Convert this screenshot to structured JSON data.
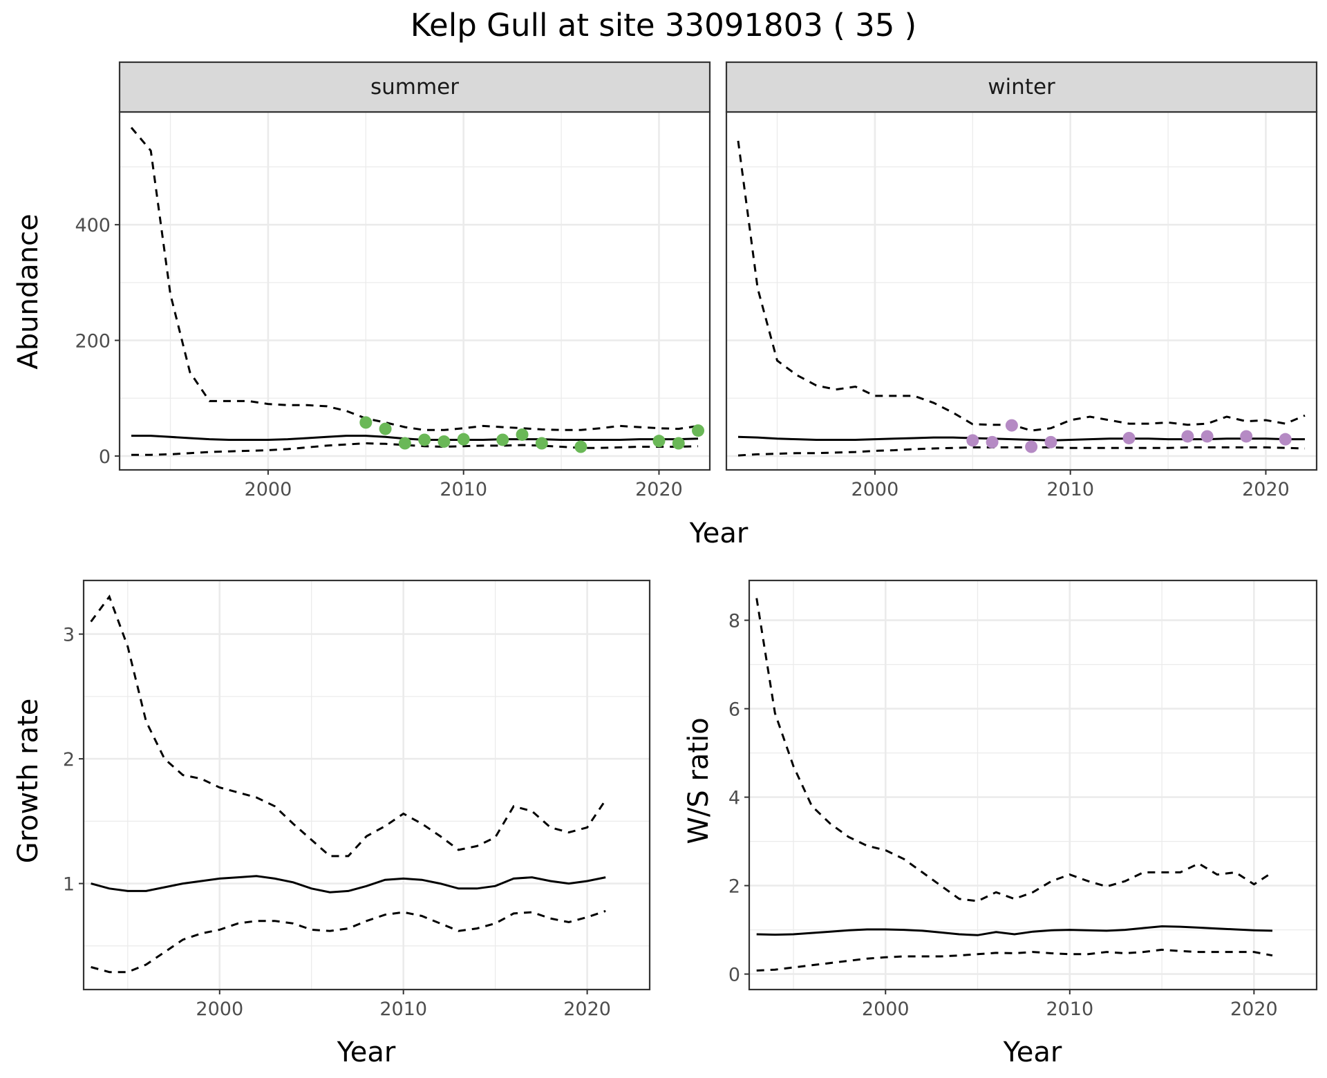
{
  "title": "Kelp Gull at site 33091803 ( 35 )",
  "colors": {
    "summer_points": "#6ab857",
    "winter_points": "#b58ac4",
    "lines": "#000000",
    "grid": "#ebebeb",
    "strip_fill": "#d9d9d9"
  },
  "chart_data": [
    {
      "id": "abundance",
      "type": "line",
      "facets": [
        "summer",
        "winter"
      ],
      "xlabel": "Year",
      "ylabel": "Abundance",
      "xlim": [
        1992.4,
        2022.6
      ],
      "ylim": [
        -24,
        595
      ],
      "xticks": [
        2000,
        2010,
        2020
      ],
      "yticks": [
        0,
        200,
        400
      ],
      "x": [
        1993,
        1994,
        1995,
        1996,
        1997,
        1998,
        1999,
        2000,
        2001,
        2002,
        2003,
        2004,
        2005,
        2006,
        2007,
        2008,
        2009,
        2010,
        2011,
        2012,
        2013,
        2014,
        2015,
        2016,
        2017,
        2018,
        2019,
        2020,
        2021,
        2022
      ],
      "panels": [
        {
          "facet": "summer",
          "mean": [
            35,
            35,
            33,
            31,
            29,
            28,
            28,
            28,
            29,
            31,
            33,
            35,
            35,
            33,
            30,
            28,
            28,
            28,
            28,
            29,
            29,
            29,
            28,
            28,
            28,
            28,
            29,
            29,
            29,
            30
          ],
          "upper": [
            568,
            528,
            280,
            145,
            95,
            95,
            95,
            90,
            88,
            88,
            86,
            78,
            65,
            58,
            50,
            45,
            45,
            48,
            52,
            50,
            48,
            46,
            45,
            45,
            48,
            52,
            50,
            48,
            47,
            52
          ],
          "lower": [
            2,
            2,
            3,
            5,
            7,
            8,
            9,
            10,
            12,
            15,
            18,
            20,
            22,
            21,
            19,
            17,
            16,
            17,
            18,
            18,
            19,
            18,
            16,
            14,
            14,
            15,
            16,
            16,
            16,
            17
          ],
          "points_x": [
            2005,
            2006,
            2007,
            2008,
            2009,
            2010,
            2012,
            2013,
            2014,
            2016,
            2020,
            2021,
            2022
          ],
          "points_y": [
            58,
            47,
            22,
            28,
            25,
            29,
            28,
            37,
            22,
            16,
            26,
            22,
            44
          ]
        },
        {
          "facet": "winter",
          "mean": [
            33,
            32,
            30,
            29,
            28,
            28,
            28,
            29,
            30,
            31,
            32,
            32,
            31,
            30,
            29,
            28,
            27,
            28,
            29,
            30,
            30,
            30,
            29,
            29,
            29,
            30,
            30,
            30,
            29,
            29
          ],
          "upper": [
            545,
            290,
            165,
            140,
            122,
            115,
            120,
            104,
            104,
            104,
            92,
            75,
            55,
            54,
            54,
            44,
            48,
            62,
            68,
            62,
            56,
            56,
            58,
            54,
            56,
            68,
            60,
            62,
            56,
            70
          ],
          "lower": [
            1,
            3,
            4,
            5,
            5,
            6,
            7,
            9,
            10,
            12,
            13,
            14,
            15,
            15,
            15,
            15,
            15,
            14,
            14,
            14,
            14,
            14,
            14,
            15,
            15,
            15,
            15,
            15,
            14,
            13
          ],
          "points_x": [
            2005,
            2006,
            2007,
            2008,
            2009,
            2013,
            2016,
            2017,
            2019,
            2021
          ],
          "points_y": [
            27,
            24,
            53,
            16,
            24,
            31,
            34,
            34,
            34,
            29
          ]
        }
      ]
    },
    {
      "id": "growth",
      "type": "line",
      "xlabel": "Year",
      "ylabel": "Growth rate",
      "xlim": [
        1992.6,
        2023.4
      ],
      "ylim": [
        0.15,
        3.43
      ],
      "xticks": [
        2000,
        2010,
        2020
      ],
      "yticks": [
        1,
        2,
        3
      ],
      "x": [
        1993,
        1994,
        1995,
        1996,
        1997,
        1998,
        1999,
        2000,
        2001,
        2002,
        2003,
        2004,
        2005,
        2006,
        2007,
        2008,
        2009,
        2010,
        2011,
        2012,
        2013,
        2014,
        2015,
        2016,
        2017,
        2018,
        2019,
        2020,
        2021
      ],
      "mean": [
        1.0,
        0.96,
        0.94,
        0.94,
        0.97,
        1.0,
        1.02,
        1.04,
        1.05,
        1.06,
        1.04,
        1.01,
        0.96,
        0.93,
        0.94,
        0.98,
        1.03,
        1.04,
        1.03,
        1.0,
        0.96,
        0.96,
        0.98,
        1.04,
        1.05,
        1.02,
        1.0,
        1.02,
        1.05
      ],
      "upper": [
        3.1,
        3.3,
        2.9,
        2.3,
        2.0,
        1.87,
        1.84,
        1.77,
        1.73,
        1.69,
        1.62,
        1.48,
        1.35,
        1.22,
        1.22,
        1.38,
        1.46,
        1.56,
        1.48,
        1.38,
        1.27,
        1.3,
        1.37,
        1.62,
        1.58,
        1.45,
        1.41,
        1.45,
        1.67
      ],
      "lower": [
        0.33,
        0.29,
        0.29,
        0.35,
        0.45,
        0.55,
        0.6,
        0.63,
        0.68,
        0.7,
        0.7,
        0.68,
        0.63,
        0.62,
        0.64,
        0.7,
        0.75,
        0.77,
        0.74,
        0.68,
        0.62,
        0.64,
        0.68,
        0.76,
        0.77,
        0.72,
        0.69,
        0.73,
        0.78
      ]
    },
    {
      "id": "ratio",
      "type": "line",
      "xlabel": "Year",
      "ylabel": "W/S ratio",
      "xlim": [
        1992.6,
        2023.4
      ],
      "ylim": [
        -0.35,
        8.9
      ],
      "xticks": [
        2000,
        2010,
        2020
      ],
      "yticks": [
        0,
        2,
        4,
        6,
        8
      ],
      "x": [
        1993,
        1994,
        1995,
        1996,
        1997,
        1998,
        1999,
        2000,
        2001,
        2002,
        2003,
        2004,
        2005,
        2006,
        2007,
        2008,
        2009,
        2010,
        2011,
        2012,
        2013,
        2014,
        2015,
        2016,
        2017,
        2018,
        2019,
        2020,
        2021
      ],
      "mean": [
        0.9,
        0.89,
        0.9,
        0.93,
        0.96,
        0.99,
        1.01,
        1.01,
        1.0,
        0.98,
        0.94,
        0.9,
        0.88,
        0.95,
        0.9,
        0.96,
        0.99,
        1.0,
        0.99,
        0.98,
        1.0,
        1.04,
        1.08,
        1.07,
        1.05,
        1.03,
        1.01,
        0.99,
        0.98
      ],
      "upper": [
        8.5,
        5.9,
        4.7,
        3.8,
        3.4,
        3.1,
        2.9,
        2.8,
        2.6,
        2.3,
        2.0,
        1.7,
        1.65,
        1.85,
        1.7,
        1.85,
        2.1,
        2.25,
        2.1,
        1.98,
        2.1,
        2.3,
        2.3,
        2.3,
        2.5,
        2.25,
        2.3,
        2.03,
        2.3
      ],
      "lower": [
        0.08,
        0.1,
        0.15,
        0.2,
        0.25,
        0.3,
        0.35,
        0.38,
        0.4,
        0.4,
        0.4,
        0.42,
        0.45,
        0.48,
        0.47,
        0.5,
        0.47,
        0.45,
        0.45,
        0.5,
        0.47,
        0.5,
        0.55,
        0.52,
        0.5,
        0.5,
        0.5,
        0.5,
        0.42
      ]
    }
  ]
}
